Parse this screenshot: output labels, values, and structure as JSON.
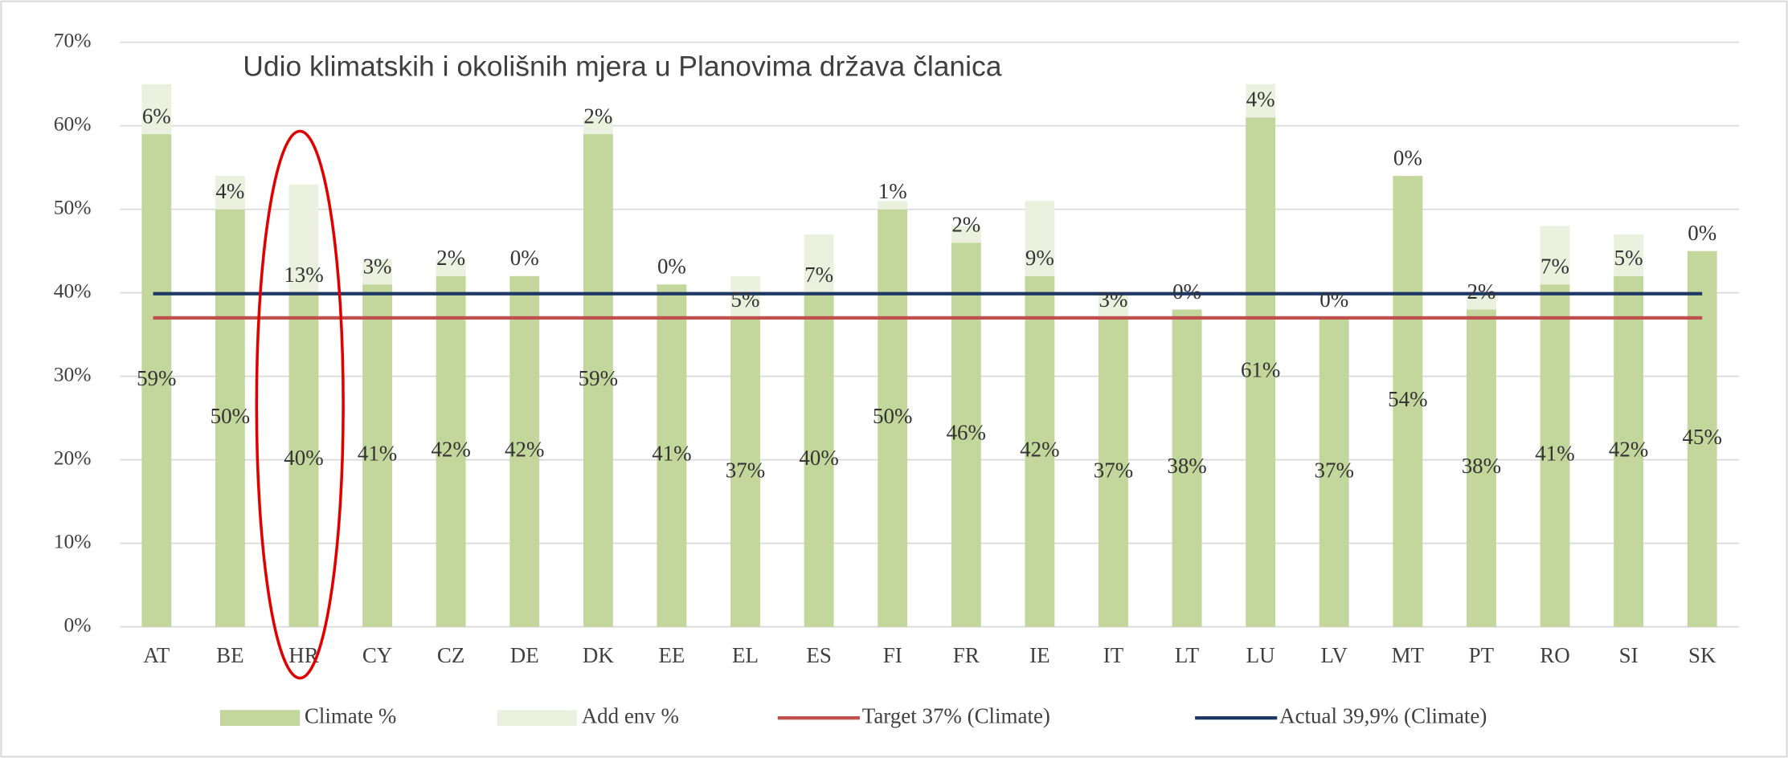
{
  "chart_data": {
    "type": "bar",
    "stacked": true,
    "title": "Udio klimatskih i okolišnih mjera u Planovima država članica",
    "categories": [
      "AT",
      "BE",
      "HR",
      "CY",
      "CZ",
      "DE",
      "DK",
      "EE",
      "EL",
      "ES",
      "FI",
      "FR",
      "IE",
      "IT",
      "LT",
      "LU",
      "LV",
      "MT",
      "PT",
      "RO",
      "SI",
      "SK"
    ],
    "series": [
      {
        "name": "Climate %",
        "color": "#c3d69b",
        "values": [
          59,
          50,
          40,
          41,
          42,
          42,
          59,
          41,
          37,
          40,
          50,
          46,
          42,
          37,
          38,
          61,
          37,
          54,
          38,
          41,
          42,
          45
        ],
        "value_labels": [
          "59%",
          "50%",
          "40%",
          "41%",
          "42%",
          "42%",
          "59%",
          "41%",
          "37%",
          "40%",
          "50%",
          "46%",
          "42%",
          "37%",
          "38%",
          "61%",
          "37%",
          "54%",
          "38%",
          "41%",
          "42%",
          "45%"
        ]
      },
      {
        "name": "Add env %",
        "color": "#ebf1de",
        "values": [
          6,
          4,
          13,
          3,
          2,
          0,
          2,
          0,
          5,
          7,
          1,
          2,
          9,
          3,
          0,
          4,
          0,
          0,
          2,
          7,
          5,
          0
        ],
        "value_labels": [
          "6%",
          "4%",
          "13%",
          "3%",
          "2%",
          "0%",
          "2%",
          "0%",
          "5%",
          "7%",
          "1%",
          "2%",
          "9%",
          "3%",
          "0%",
          "4%",
          "0%",
          "0%",
          "2%",
          "7%",
          "5%",
          "0%"
        ]
      }
    ],
    "lines": [
      {
        "name": "Target 37% (Climate)",
        "value": 37,
        "color": "#c0504d"
      },
      {
        "name": "Actual 39,9% (Climate)",
        "value": 39.9,
        "color": "#1f3864"
      }
    ],
    "ylim": [
      0,
      70
    ],
    "yticks": [
      {
        "value": 0,
        "label": "0%"
      },
      {
        "value": 10,
        "label": "10%"
      },
      {
        "value": 20,
        "label": "20%"
      },
      {
        "value": 30,
        "label": "30%"
      },
      {
        "value": 40,
        "label": "40%"
      },
      {
        "value": 50,
        "label": "50%"
      },
      {
        "value": 60,
        "label": "60%"
      },
      {
        "value": 70,
        "label": "70%"
      }
    ],
    "grid": true,
    "legend": "bottom"
  }
}
